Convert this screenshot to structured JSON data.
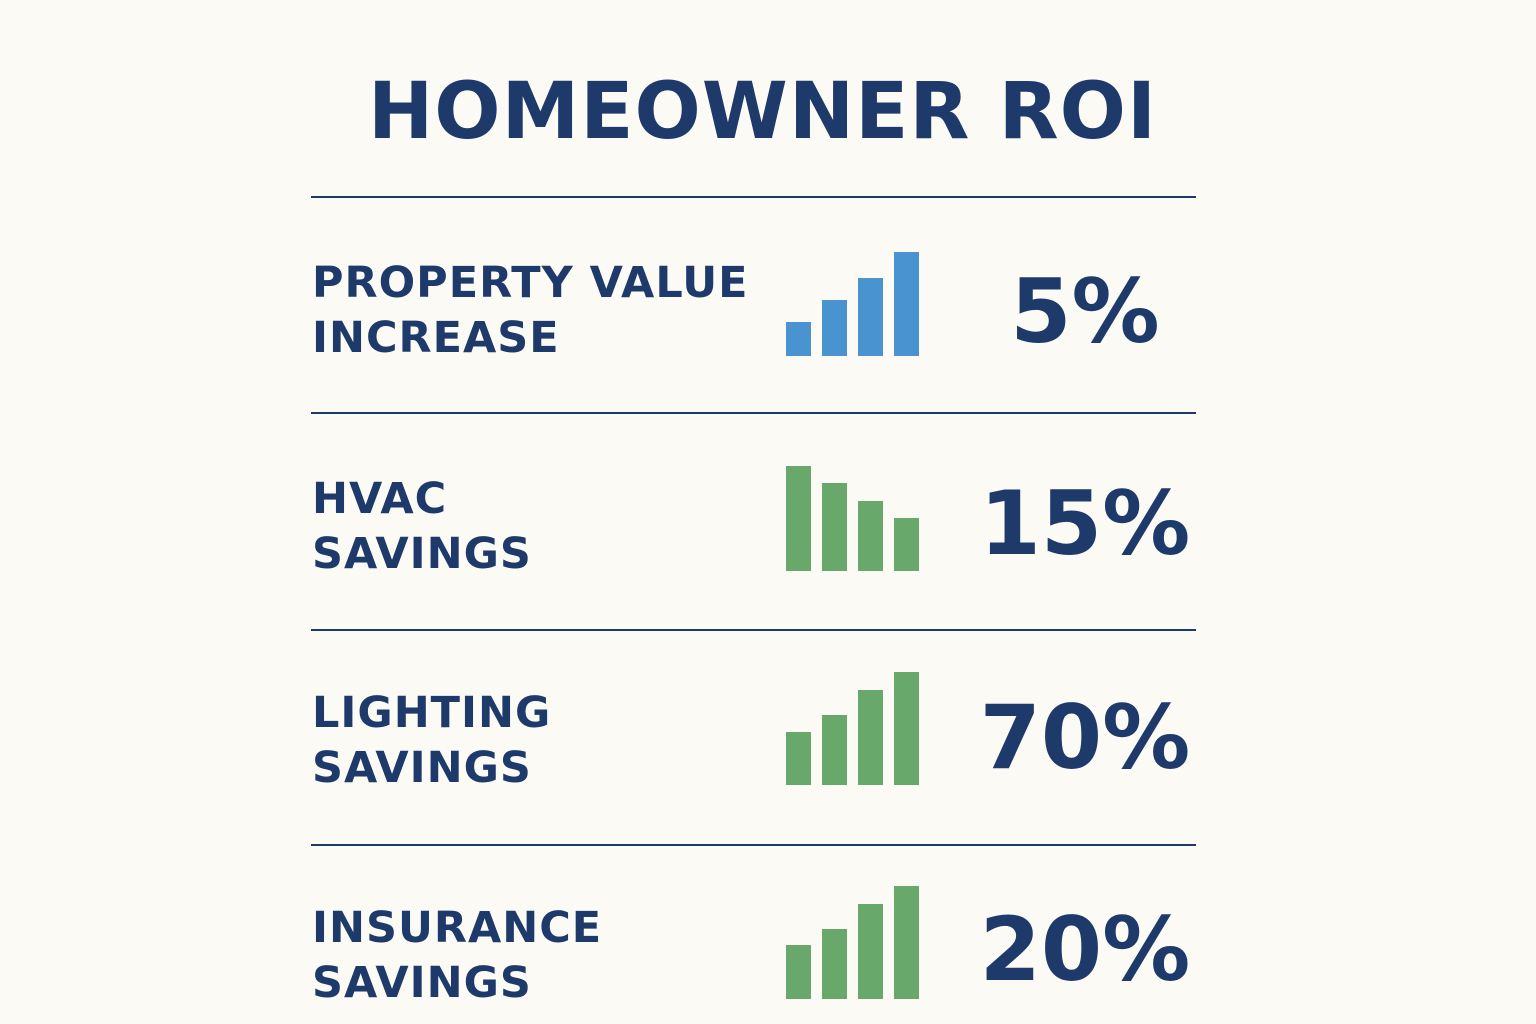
{
  "title": "HOMEOWNER ROI",
  "colors": {
    "background": "#fcfaf5",
    "text": "#1d3a6b",
    "divider": "#1d3a6b",
    "bar_blue": "#4a93d1",
    "bar_green": "#68a96b"
  },
  "rows": [
    {
      "label_lines": [
        "PROPERTY VALUE",
        "INCREASE"
      ],
      "value": "5%",
      "icon": "bar-chart-rising-icon",
      "bar_color": "blue",
      "bar_levels": [
        0.33,
        0.54,
        0.75,
        1.0
      ]
    },
    {
      "label_lines": [
        "HVAC",
        "SAVINGS"
      ],
      "value": "15%",
      "icon": "bar-chart-falling-icon",
      "bar_color": "green",
      "bar_levels": [
        1.0,
        0.84,
        0.67,
        0.5
      ]
    },
    {
      "label_lines": [
        "LIGHTING",
        "SAVINGS"
      ],
      "value": "70%",
      "icon": "bar-chart-rising-icon",
      "bar_color": "green",
      "bar_levels": [
        0.47,
        0.62,
        0.84,
        1.0
      ]
    },
    {
      "label_lines": [
        "INSURANCE",
        "SAVINGS"
      ],
      "value": "20%",
      "icon": "bar-chart-rising-icon",
      "bar_color": "green",
      "bar_levels": [
        0.48,
        0.62,
        0.84,
        1.0
      ]
    }
  ]
}
